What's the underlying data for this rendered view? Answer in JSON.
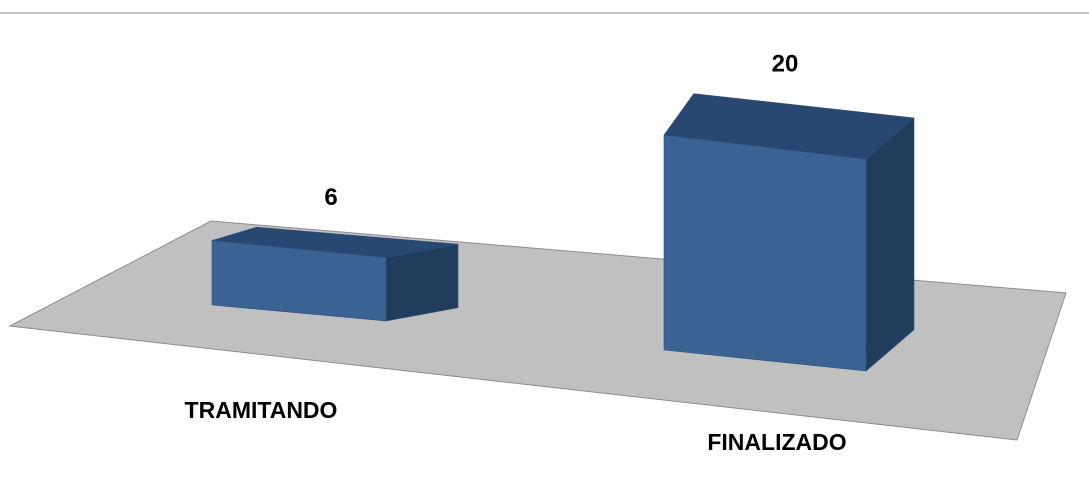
{
  "chart_data": {
    "type": "bar",
    "style": "3d-column",
    "categories": [
      "TRAMITANDO",
      "FINALIZADO"
    ],
    "values": [
      6,
      20
    ],
    "ylim": [
      0,
      20
    ],
    "grid": false,
    "legend": "none",
    "colors": {
      "bar_front": "#3A6293",
      "bar_top": "#284872",
      "bar_side": "#223C5C",
      "bar_edge": "#2D4E78",
      "floor": "#C0C0C0",
      "floor_edge": "#8C8C8C",
      "frame_line": "#8C8C8C"
    }
  }
}
